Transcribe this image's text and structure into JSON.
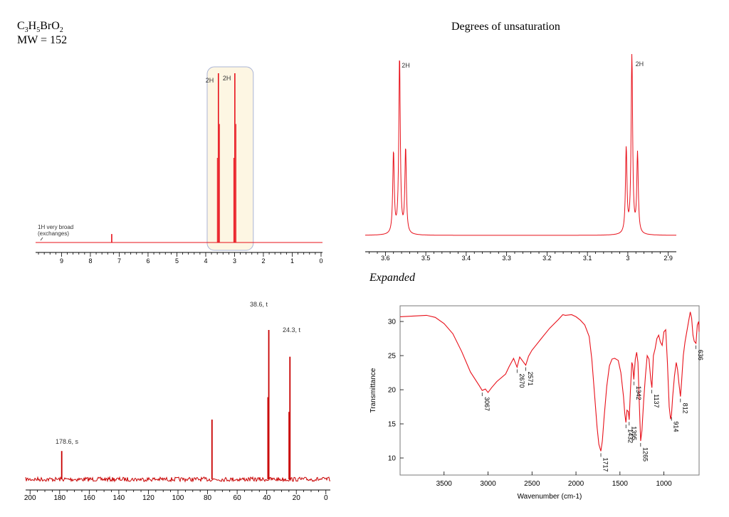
{
  "header": {
    "formula_parts": [
      {
        "t": "C",
        "sub": false
      },
      {
        "t": "3",
        "sub": true
      },
      {
        "t": "H",
        "sub": false
      },
      {
        "t": "5",
        "sub": true
      },
      {
        "t": "BrO",
        "sub": false
      },
      {
        "t": "2",
        "sub": true
      }
    ],
    "mw": "MW = 152",
    "degrees_label": "Degrees of unsaturation",
    "expanded_label": "Expanded"
  },
  "colors": {
    "trace": "#e8101a",
    "axis": "#000000",
    "box_fill": "#fdf6e3",
    "box_stroke": "#aab4d6",
    "ir_frame": "#7a7a7a"
  },
  "chart_data": [
    {
      "type": "line",
      "id": "h1-nmr-full",
      "xlim": [
        9.9,
        -0.05
      ],
      "xticks": [
        "9",
        "8",
        "7",
        "6",
        "5",
        "4",
        "3",
        "2",
        "1",
        "0"
      ],
      "peaks": [
        {
          "ppm": 7.26,
          "height": 0.05
        },
        {
          "ppm": 3.56,
          "height": 1.0
        },
        {
          "ppm": 2.99,
          "height": 1.0
        }
      ],
      "annotations": [
        {
          "text": "2H",
          "ppm": 3.56
        },
        {
          "text": "2H",
          "ppm": 2.99
        },
        {
          "text": "1H very broad",
          "ppm": 9.6
        },
        {
          "text": "(exchanges)",
          "ppm": 9.6
        }
      ]
    },
    {
      "type": "line",
      "id": "h1-nmr-expanded",
      "xlim": [
        3.65,
        2.88
      ],
      "xticks": [
        "3.6",
        "3.5",
        "3.4",
        "3.3",
        "3.2",
        "3.1",
        "3",
        "2.9"
      ],
      "multiplets": [
        {
          "center": 3.565,
          "lines": [
            3.58,
            3.565,
            3.55
          ],
          "heights": [
            0.45,
            0.98,
            0.47
          ],
          "label": "2H"
        },
        {
          "center": 2.99,
          "lines": [
            3.004,
            2.99,
            2.976
          ],
          "heights": [
            0.47,
            1.0,
            0.44
          ],
          "label": "2H"
        }
      ]
    },
    {
      "type": "line",
      "id": "c13-nmr",
      "xlim": [
        203,
        -3
      ],
      "xticks": [
        "200",
        "180",
        "160",
        "140",
        "120",
        "100",
        "80",
        "60",
        "40",
        "20",
        "0"
      ],
      "peaks": [
        {
          "ppm": 178.6,
          "height": 0.18
        },
        {
          "ppm": 77.0,
          "height": 0.38
        },
        {
          "ppm": 38.6,
          "height": 0.95
        },
        {
          "ppm": 24.3,
          "height": 0.78
        }
      ],
      "annotations": [
        {
          "text": "178.6, s",
          "ppm": 178.6
        },
        {
          "text": "38.6, t",
          "ppm": 38.6
        },
        {
          "text": "24.3, t",
          "ppm": 24.3
        }
      ]
    },
    {
      "type": "line",
      "id": "ir-spectrum",
      "xlabel": "Wavenumber (cm-1)",
      "ylabel": "Transmittance",
      "xlim": [
        4000,
        600
      ],
      "ylim": [
        7.5,
        32.3
      ],
      "xticks": [
        "3500",
        "3000",
        "2500",
        "2000",
        "1500",
        "1000"
      ],
      "yticks": [
        "10",
        "15",
        "20",
        "25",
        "30"
      ],
      "points": [
        [
          4000,
          30.7
        ],
        [
          3850,
          30.8
        ],
        [
          3700,
          30.9
        ],
        [
          3600,
          30.6
        ],
        [
          3500,
          29.7
        ],
        [
          3400,
          28.2
        ],
        [
          3300,
          25.6
        ],
        [
          3200,
          22.6
        ],
        [
          3100,
          20.6
        ],
        [
          3067,
          19.9
        ],
        [
          3030,
          20.1
        ],
        [
          3000,
          19.6
        ],
        [
          2960,
          20.3
        ],
        [
          2900,
          21.2
        ],
        [
          2800,
          22.3
        ],
        [
          2760,
          23.4
        ],
        [
          2710,
          24.6
        ],
        [
          2670,
          23.3
        ],
        [
          2640,
          24.8
        ],
        [
          2600,
          24.1
        ],
        [
          2571,
          23.6
        ],
        [
          2540,
          24.9
        ],
        [
          2500,
          25.8
        ],
        [
          2450,
          26.6
        ],
        [
          2400,
          27.4
        ],
        [
          2300,
          29.0
        ],
        [
          2200,
          30.3
        ],
        [
          2150,
          31.0
        ],
        [
          2120,
          30.9
        ],
        [
          2050,
          31.0
        ],
        [
          2000,
          30.7
        ],
        [
          1950,
          30.2
        ],
        [
          1900,
          29.5
        ],
        [
          1850,
          27.8
        ],
        [
          1820,
          24.5
        ],
        [
          1790,
          19.5
        ],
        [
          1760,
          14.5
        ],
        [
          1740,
          12.0
        ],
        [
          1717,
          11.0
        ],
        [
          1700,
          12.5
        ],
        [
          1680,
          16.0
        ],
        [
          1650,
          20.5
        ],
        [
          1620,
          23.5
        ],
        [
          1590,
          24.5
        ],
        [
          1560,
          24.6
        ],
        [
          1520,
          24.3
        ],
        [
          1490,
          22.5
        ],
        [
          1460,
          19.0
        ],
        [
          1445,
          16.5
        ],
        [
          1432,
          15.2
        ],
        [
          1420,
          17.0
        ],
        [
          1405,
          16.8
        ],
        [
          1395,
          15.6
        ],
        [
          1380,
          20.0
        ],
        [
          1365,
          24.0
        ],
        [
          1355,
          23.6
        ],
        [
          1342,
          21.5
        ],
        [
          1325,
          24.5
        ],
        [
          1310,
          25.5
        ],
        [
          1295,
          24.0
        ],
        [
          1280,
          18.0
        ],
        [
          1265,
          12.5
        ],
        [
          1250,
          14.0
        ],
        [
          1230,
          18.5
        ],
        [
          1210,
          22.0
        ],
        [
          1190,
          25.0
        ],
        [
          1170,
          24.5
        ],
        [
          1150,
          21.5
        ],
        [
          1137,
          20.3
        ],
        [
          1120,
          25.0
        ],
        [
          1100,
          26.0
        ],
        [
          1080,
          27.5
        ],
        [
          1060,
          28.0
        ],
        [
          1040,
          27.0
        ],
        [
          1020,
          26.5
        ],
        [
          1000,
          28.5
        ],
        [
          980,
          28.8
        ],
        [
          960,
          24.0
        ],
        [
          940,
          17.5
        ],
        [
          925,
          15.7
        ],
        [
          914,
          16.3
        ],
        [
          900,
          19.0
        ],
        [
          880,
          22.0
        ],
        [
          860,
          24.0
        ],
        [
          845,
          23.0
        ],
        [
          830,
          21.0
        ],
        [
          812,
          19.0
        ],
        [
          800,
          21.0
        ],
        [
          780,
          25.0
        ],
        [
          760,
          27.0
        ],
        [
          740,
          28.5
        ],
        [
          720,
          30.0
        ],
        [
          700,
          31.4
        ],
        [
          685,
          30.5
        ],
        [
          670,
          28.0
        ],
        [
          655,
          27.1
        ],
        [
          636,
          26.8
        ],
        [
          620,
          29.5
        ],
        [
          605,
          30.0
        ],
        [
          600,
          28.5
        ]
      ],
      "peak_labels": [
        {
          "text": "3067",
          "x": 3067,
          "y": 19.9
        },
        {
          "text": "2670",
          "x": 2670,
          "y": 23.3
        },
        {
          "text": "2571",
          "x": 2571,
          "y": 23.6
        },
        {
          "text": "1717",
          "x": 1717,
          "y": 11.0
        },
        {
          "text": "1432",
          "x": 1432,
          "y": 15.2
        },
        {
          "text": "1395",
          "x": 1395,
          "y": 15.6
        },
        {
          "text": "1342",
          "x": 1342,
          "y": 21.5
        },
        {
          "text": "1265",
          "x": 1265,
          "y": 12.5
        },
        {
          "text": "1137",
          "x": 1137,
          "y": 20.3
        },
        {
          "text": "914",
          "x": 914,
          "y": 16.3
        },
        {
          "text": "812",
          "x": 812,
          "y": 19.0
        },
        {
          "text": "636",
          "x": 636,
          "y": 26.8
        }
      ]
    }
  ]
}
